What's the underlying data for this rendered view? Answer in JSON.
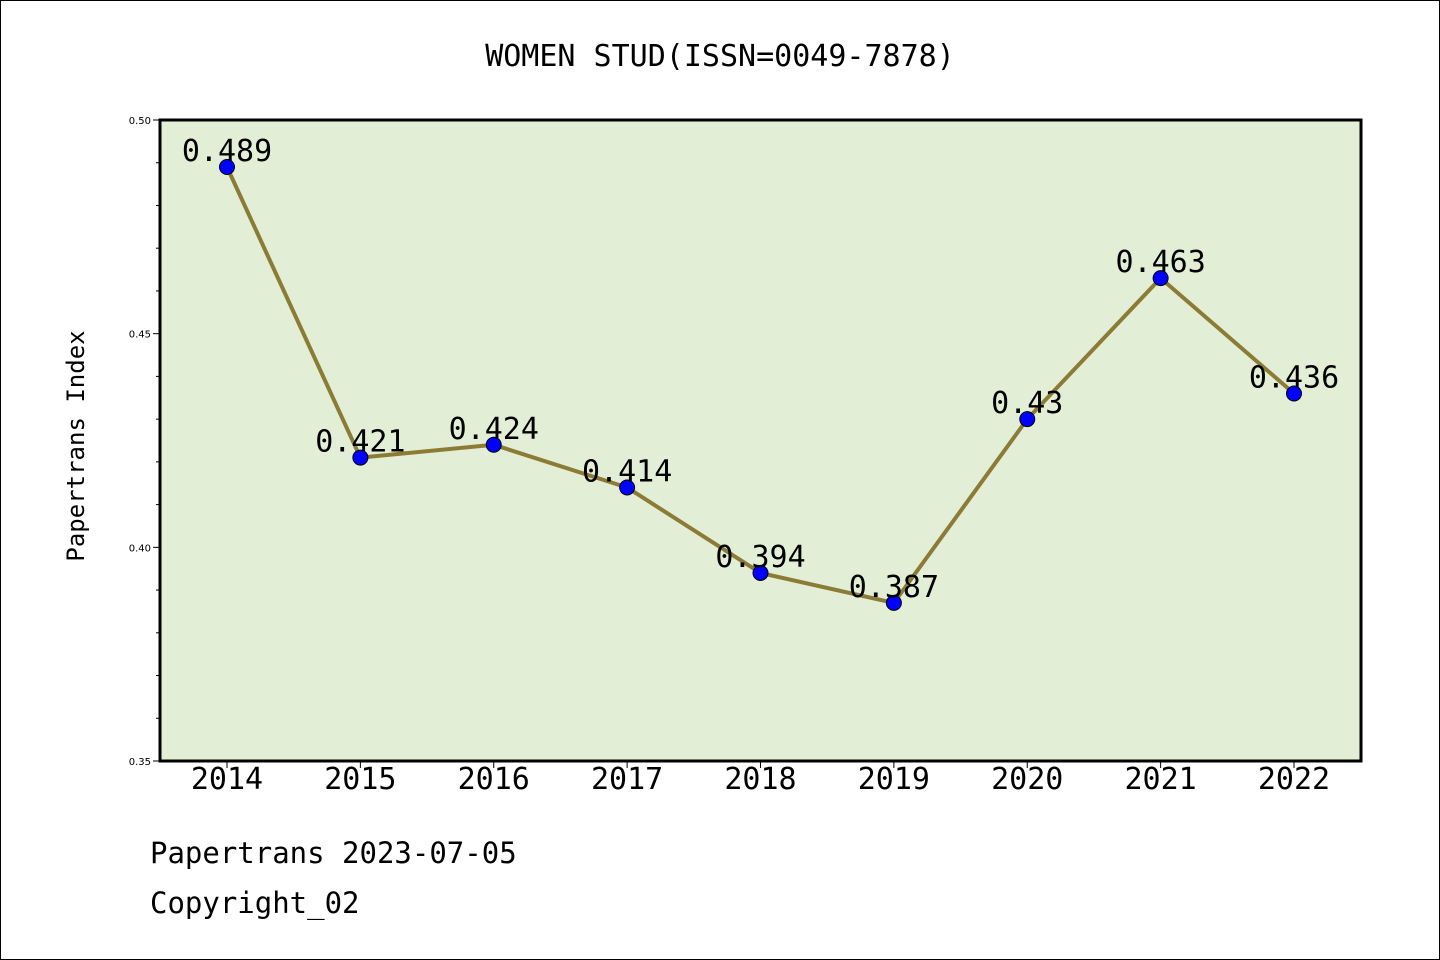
{
  "chart_data": {
    "type": "line",
    "title": "WOMEN STUD(ISSN=0049-7878)",
    "ylabel": "Papertrans Index",
    "xlabel": "",
    "categories": [
      "2014",
      "2015",
      "2016",
      "2017",
      "2018",
      "2019",
      "2020",
      "2021",
      "2022"
    ],
    "values": [
      0.489,
      0.421,
      0.424,
      0.414,
      0.394,
      0.387,
      0.43,
      0.463,
      0.436
    ],
    "data_labels": [
      "0.489",
      "0.421",
      "0.424",
      "0.414",
      "0.394",
      "0.387",
      "0.43",
      "0.463",
      "0.436"
    ],
    "ylim": [
      0.35,
      0.5
    ],
    "yticks": [
      "0.35",
      "0.40",
      "0.45",
      "0.50"
    ],
    "grid": false,
    "colors": {
      "plot_background": "#e2efd6",
      "line": "#8c7b35",
      "marker": "#0000ff"
    }
  },
  "footer": {
    "line1": "Papertrans 2023-07-05",
    "line2": "Copyright_02"
  }
}
